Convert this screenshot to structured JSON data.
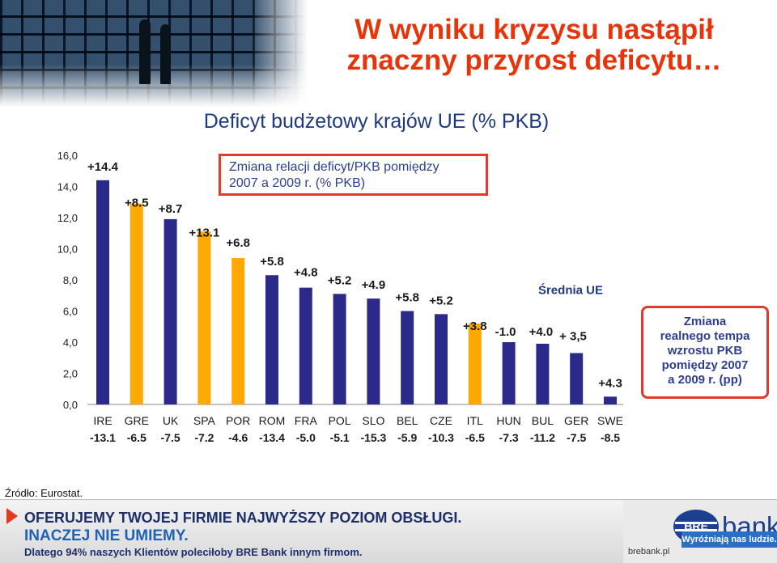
{
  "header": {
    "title_line1": "W wyniku kryzysu nastąpił",
    "title_line2": "znaczny przyrost deficytu…"
  },
  "chart_data": {
    "type": "bar",
    "title": "Deficyt budżetowy krajów UE (% PKB)",
    "categories": [
      "IRE",
      "GRE",
      "UK",
      "SPA",
      "POR",
      "ROM",
      "FRA",
      "POL",
      "SLO",
      "BEL",
      "CZE",
      "ITL",
      "HUN",
      "BUL",
      "GER",
      "SWE"
    ],
    "values": [
      14.4,
      12.9,
      11.9,
      11.1,
      9.4,
      8.3,
      7.5,
      7.1,
      6.8,
      6.0,
      5.8,
      5.2,
      4.0,
      3.9,
      3.3,
      0.5
    ],
    "colors": [
      "#2b2a8a",
      "#ffa800",
      "#2b2a8a",
      "#ffa800",
      "#ffa800",
      "#2b2a8a",
      "#2b2a8a",
      "#2b2a8a",
      "#2b2a8a",
      "#2b2a8a",
      "#2b2a8a",
      "#ffa800",
      "#2b2a8a",
      "#2b2a8a",
      "#2b2a8a",
      "#2b2a8a"
    ],
    "change_labels": [
      "+14.4",
      "+8.5",
      "+8.7",
      "+13.1",
      "+6.8",
      "+5.8",
      "+4.8",
      "+5.2",
      "+4.9",
      "+5.8",
      "+5.2",
      "+3.8",
      "-1.0",
      "+4.0",
      "",
      "+4.3"
    ],
    "growth_labels": [
      "-13.1",
      "-6.5",
      "-7.5",
      "-7.2",
      "-4.6",
      "-13.4",
      "-5.0",
      "-5.1",
      "-15.3",
      "-5.9",
      "-10.3",
      "-6.5",
      "-7.3",
      "-11.2",
      "-7.5",
      "-8.5"
    ],
    "y_ticks": [
      "0,0",
      "2,0",
      "4,0",
      "6,0",
      "8,0",
      "10,0",
      "12,0",
      "14,0",
      "16,0"
    ],
    "ylim": [
      0,
      16
    ],
    "average_value": 3.5,
    "average_label": "Średnia UE",
    "average_value_label": "+ 3,5",
    "grid": false
  },
  "note_box": {
    "line1": "Zmiana relacji deficyt/PKB pomiędzy",
    "line2": "2007 a 2009 r. (% PKB)"
  },
  "side_box": {
    "line1": "Zmiana",
    "line2": "realnego tempa",
    "line3": "wzrostu PKB",
    "line4": "pomiędzy 2007",
    "line5": "a 2009 r. (pp)"
  },
  "source": "Źródło: Eurostat.",
  "banner": {
    "line1": "OFERUJEMY TWOJEJ FIRMIE NAJWYŻSZY POZIOM OBSŁUGI.",
    "line2": "INACZEJ NIE UMIEMY.",
    "line3": "Dlatego 94% naszych Klientów poleciłoby BRE Bank innym firmom.",
    "logo_text": "bank",
    "logo_mark_text": "BRE",
    "url": "brebank.pl",
    "slogan": "Wyróżniają nas ludzie."
  },
  "colors": {
    "title": "#e8340b",
    "chart_title": "#1f3a7a",
    "bar_blue": "#2b2a8a",
    "bar_orange": "#ffa800",
    "box_border": "#e3382d"
  }
}
